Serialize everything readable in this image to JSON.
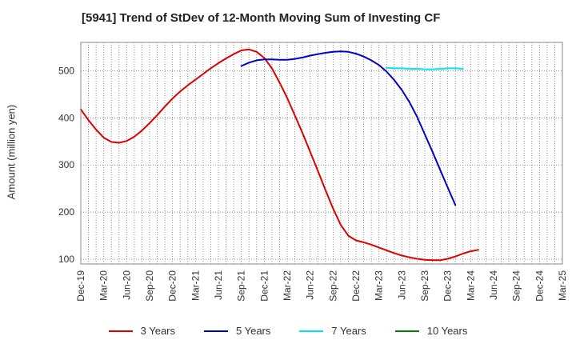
{
  "chart_data": {
    "type": "line",
    "title": "[5941]  Trend of StDev of 12-Month Moving Sum of Investing CF",
    "xlabel": "",
    "ylabel": "Amount (million yen)",
    "x_tick_labels": [
      "Dec-19",
      "Mar-20",
      "Jun-20",
      "Sep-20",
      "Dec-20",
      "Mar-21",
      "Jun-21",
      "Sep-21",
      "Dec-21",
      "Mar-22",
      "Jun-22",
      "Sep-22",
      "Dec-22",
      "Mar-23",
      "Jun-23",
      "Sep-23",
      "Dec-23",
      "Mar-24",
      "Jun-24",
      "Sep-24",
      "Dec-24",
      "Mar-25"
    ],
    "y_ticks": [
      100,
      200,
      300,
      400,
      500
    ],
    "ylim": [
      90,
      560
    ],
    "grid": true,
    "legend_position": "bottom",
    "series": [
      {
        "name": "3 Years",
        "color": "#dd0000",
        "values": [
          418,
          395,
          375,
          358,
          349,
          347,
          351,
          360,
          373,
          389,
          406,
          424,
          441,
          456,
          469,
          481,
          493,
          505,
          516,
          526,
          535,
          543,
          545,
          540,
          527,
          505,
          475,
          442,
          405,
          368,
          328,
          288,
          247,
          208,
          173,
          150,
          140,
          136,
          131,
          125,
          119,
          113,
          108,
          104,
          101,
          99,
          98,
          98,
          101,
          106,
          112,
          117,
          120
        ]
      },
      {
        "name": "5 Years",
        "color": "#0000cc",
        "values": [
          null,
          null,
          null,
          null,
          null,
          null,
          null,
          null,
          null,
          null,
          null,
          null,
          null,
          null,
          null,
          null,
          null,
          null,
          null,
          null,
          null,
          510,
          517,
          522,
          524,
          524,
          523,
          523,
          525,
          528,
          532,
          535,
          538,
          540,
          541,
          540,
          536,
          530,
          522,
          512,
          498,
          480,
          459,
          433,
          402,
          365,
          328,
          290,
          252,
          215
        ]
      },
      {
        "name": "7 Years",
        "color": "#00e5ee",
        "values": [
          null,
          null,
          null,
          null,
          null,
          null,
          null,
          null,
          null,
          null,
          null,
          null,
          null,
          null,
          null,
          null,
          null,
          null,
          null,
          null,
          null,
          null,
          null,
          null,
          null,
          null,
          null,
          null,
          null,
          null,
          null,
          null,
          null,
          null,
          null,
          null,
          null,
          null,
          null,
          null,
          506,
          505,
          505,
          504,
          504,
          503,
          503,
          504,
          505,
          505,
          504
        ]
      },
      {
        "name": "10 Years",
        "color": "#008000",
        "values": []
      }
    ]
  }
}
